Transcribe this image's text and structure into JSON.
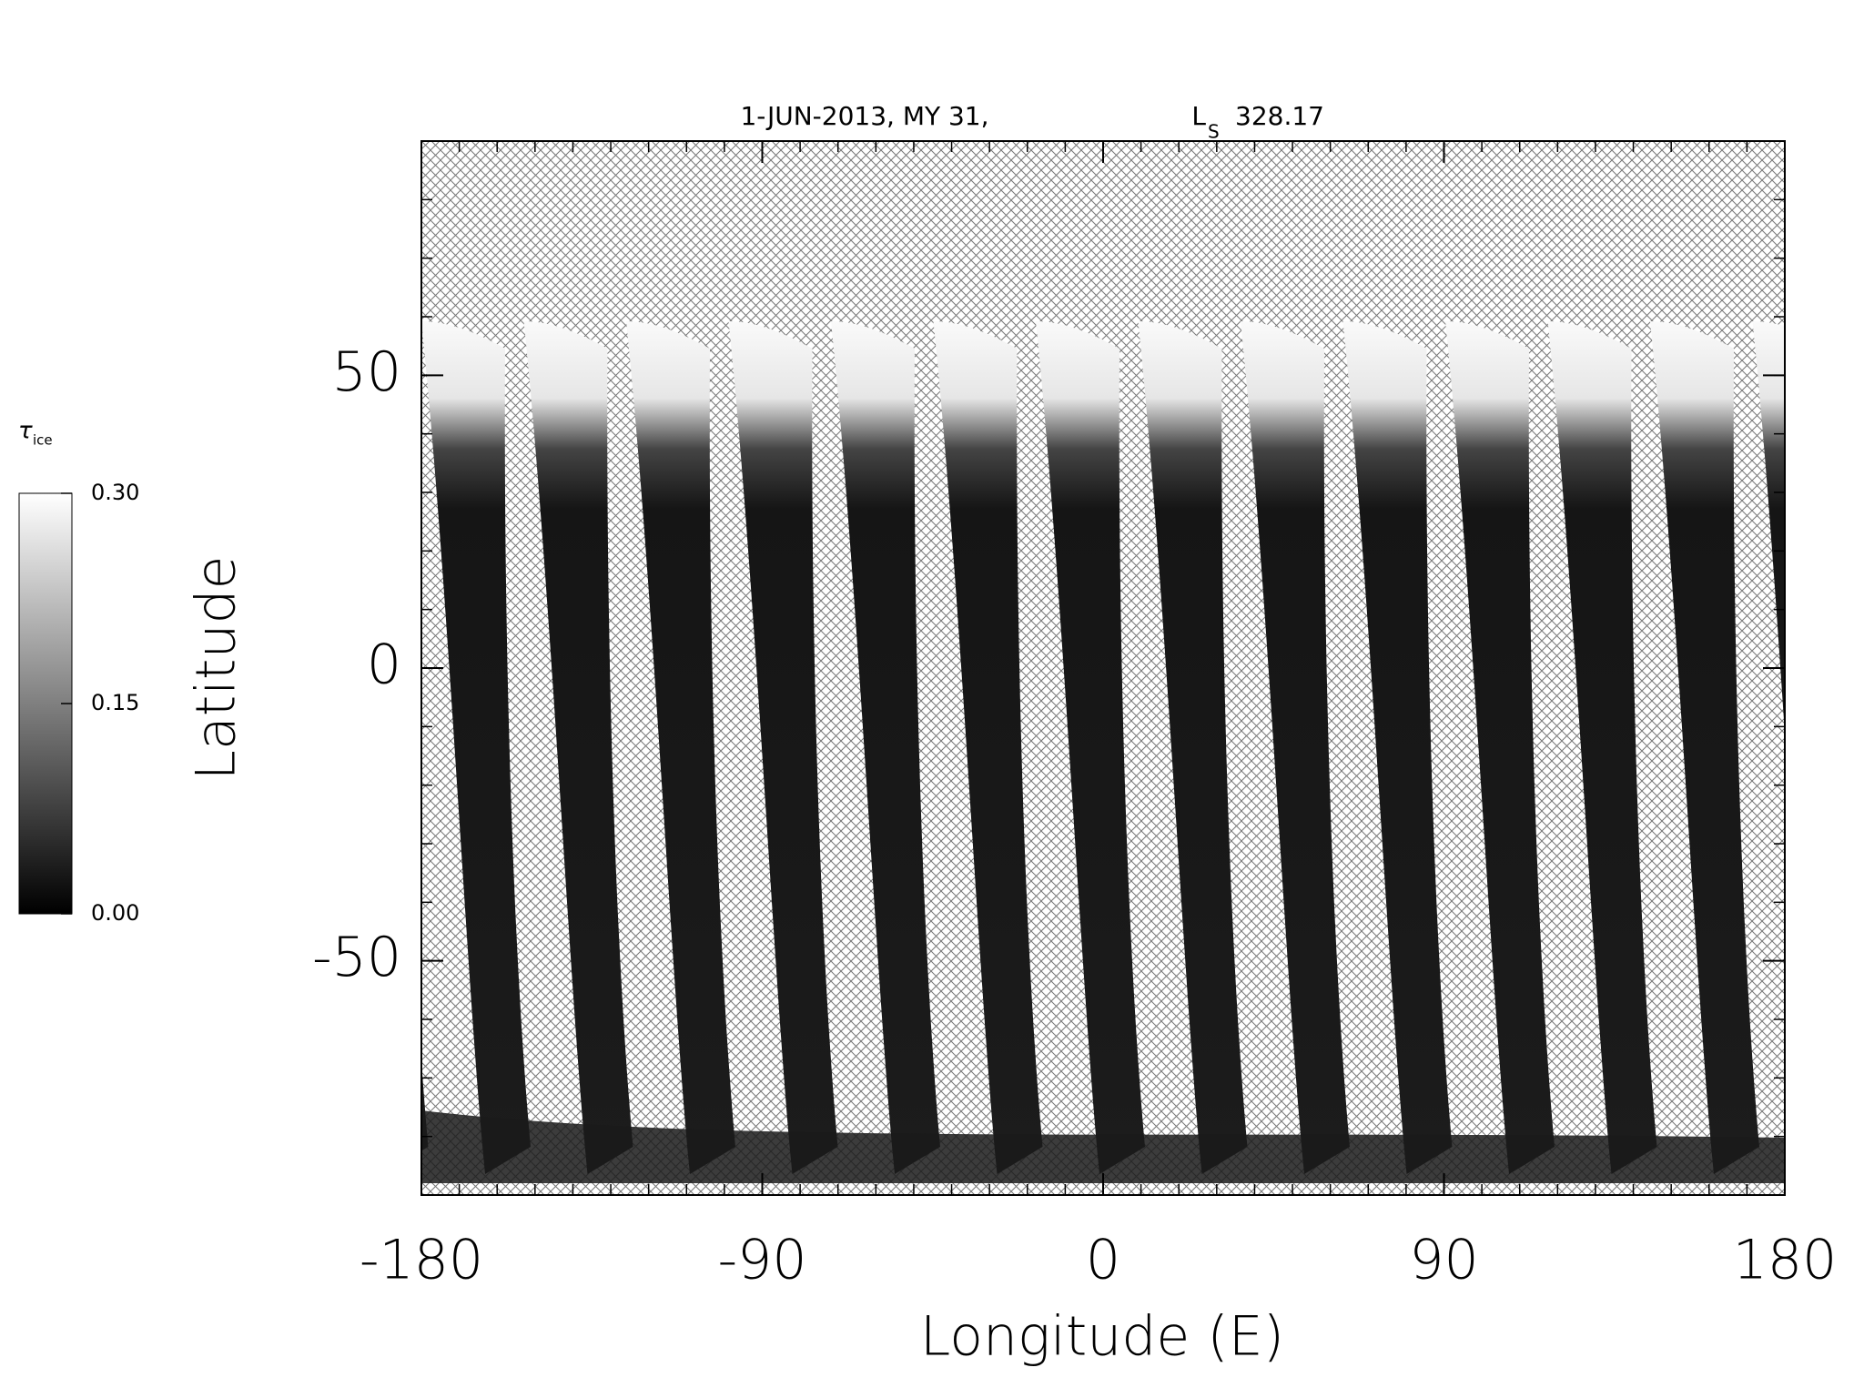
{
  "chart_data": {
    "type": "map",
    "title": {
      "text": "1-JUN-2013, MY 31,",
      "symbol": "L",
      "subscript": "S",
      "value": "328.17"
    },
    "xlabel": "Longitude (E)",
    "ylabel": "Latitude",
    "xlim": [
      -180,
      180
    ],
    "ylim": [
      -90,
      90
    ],
    "xticks": [
      -180,
      -90,
      0,
      90,
      180
    ],
    "yticks": [
      -50,
      0,
      50
    ],
    "colorbar": {
      "symbol": "τ",
      "subscript": "ice",
      "lim": [
        0,
        0.3
      ],
      "ticks": [
        {
          "value": 0,
          "label": "0.00"
        },
        {
          "value": 0.15,
          "label": "0.15"
        },
        {
          "value": 0.3,
          "label": "0.30"
        }
      ]
    }
  }
}
